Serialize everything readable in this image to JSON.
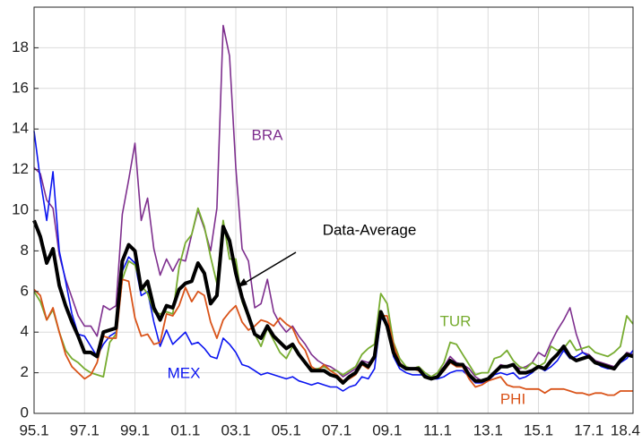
{
  "chart_data": {
    "type": "line",
    "categories": [
      "95.1",
      null,
      null,
      null,
      null,
      null,
      null,
      null,
      "97.1",
      null,
      null,
      null,
      null,
      null,
      null,
      null,
      "99.1",
      null,
      null,
      null,
      null,
      null,
      null,
      null,
      "01.1",
      null,
      null,
      null,
      null,
      null,
      null,
      null,
      "03.1",
      null,
      null,
      null,
      null,
      null,
      null,
      null,
      "05.1",
      null,
      null,
      null,
      null,
      null,
      null,
      null,
      "07.1",
      null,
      null,
      null,
      null,
      null,
      null,
      null,
      "09.1",
      null,
      null,
      null,
      null,
      null,
      null,
      null,
      "11.1",
      null,
      null,
      null,
      null,
      null,
      null,
      null,
      "13.1",
      null,
      null,
      null,
      null,
      null,
      null,
      null,
      "15.1",
      null,
      null,
      null,
      null,
      null,
      null,
      null,
      "17.1",
      null,
      null,
      null,
      null,
      null,
      null,
      "18.4"
    ],
    "series": [
      {
        "name": "BRA",
        "color": "#7e2f8e",
        "width": 1.6,
        "values": [
          12.1,
          11.8,
          10.5,
          10.1,
          7.8,
          6.6,
          5.7,
          4.8,
          4.3,
          4.3,
          3.8,
          5.3,
          5.1,
          5.3,
          9.8,
          11.5,
          13.3,
          9.5,
          10.6,
          8.1,
          6.8,
          7.6,
          7.0,
          7.6,
          7.5,
          8.8,
          10.0,
          9.1,
          8.0,
          10.1,
          19.1,
          17.6,
          12.1,
          8.1,
          7.5,
          5.2,
          5.4,
          6.6,
          5.0,
          4.4,
          4.0,
          4.3,
          3.8,
          3.4,
          2.9,
          2.6,
          2.4,
          2.3,
          2.1,
          1.8,
          2.0,
          2.2,
          2.6,
          2.5,
          2.7,
          4.9,
          4.4,
          3.1,
          2.4,
          2.2,
          2.2,
          2.3,
          2.0,
          1.8,
          2.0,
          2.3,
          2.8,
          2.5,
          2.4,
          2.2,
          1.8,
          1.6,
          1.7,
          2.0,
          2.4,
          2.3,
          2.4,
          2.2,
          2.3,
          2.5,
          3.0,
          2.8,
          3.5,
          4.1,
          4.6,
          5.2,
          3.9,
          3.0,
          2.9,
          2.6,
          2.5,
          2.4,
          2.3,
          2.6,
          3.0,
          2.9
        ]
      },
      {
        "name": "MEX",
        "color": "#0a14f0",
        "width": 1.6,
        "values": [
          13.9,
          11.5,
          9.5,
          11.9,
          8.0,
          6.5,
          4.9,
          3.9,
          3.8,
          3.3,
          2.8,
          3.4,
          3.8,
          4.0,
          7.0,
          7.7,
          7.4,
          5.8,
          6.0,
          4.5,
          3.3,
          4.1,
          3.4,
          3.7,
          4.0,
          3.4,
          3.5,
          3.2,
          2.8,
          2.7,
          3.7,
          3.4,
          3.0,
          2.4,
          2.3,
          2.1,
          1.9,
          2.0,
          1.9,
          1.8,
          1.7,
          1.8,
          1.6,
          1.5,
          1.4,
          1.5,
          1.4,
          1.3,
          1.3,
          1.1,
          1.3,
          1.4,
          1.8,
          1.7,
          2.2,
          4.7,
          4.4,
          2.8,
          2.2,
          2.0,
          1.9,
          1.9,
          1.9,
          1.7,
          1.7,
          1.8,
          2.0,
          2.1,
          2.1,
          1.8,
          1.5,
          1.5,
          1.6,
          1.9,
          2.0,
          1.9,
          2.0,
          1.7,
          1.8,
          2.0,
          2.3,
          2.1,
          2.3,
          2.6,
          3.1,
          2.7,
          2.8,
          3.0,
          2.8,
          2.5,
          2.3,
          2.2,
          2.2,
          2.5,
          2.7,
          3.1
        ]
      },
      {
        "name": "TUR",
        "color": "#77ac30",
        "width": 1.8,
        "values": [
          6.0,
          5.5,
          4.6,
          5.1,
          4.0,
          3.1,
          2.7,
          2.5,
          2.2,
          2.0,
          1.9,
          1.8,
          3.5,
          3.9,
          6.6,
          7.5,
          7.3,
          6.3,
          5.9,
          5.0,
          4.9,
          5.0,
          4.9,
          7.2,
          8.4,
          8.8,
          10.1,
          9.2,
          7.7,
          6.4,
          9.5,
          7.6,
          7.6,
          5.5,
          4.7,
          3.9,
          3.3,
          4.2,
          3.6,
          3.0,
          2.7,
          3.3,
          2.9,
          2.5,
          2.2,
          2.2,
          2.3,
          2.1,
          2.1,
          1.9,
          2.1,
          2.3,
          2.9,
          3.2,
          3.4,
          5.9,
          5.4,
          3.5,
          2.7,
          2.3,
          2.2,
          2.3,
          2.0,
          1.8,
          2.0,
          2.5,
          3.5,
          3.4,
          2.9,
          2.4,
          1.9,
          2.0,
          2.0,
          2.7,
          2.8,
          3.1,
          2.6,
          2.3,
          2.2,
          2.5,
          2.3,
          2.5,
          3.3,
          3.1,
          3.2,
          3.6,
          3.1,
          3.2,
          3.3,
          3.0,
          2.9,
          2.8,
          3.0,
          3.3,
          4.8,
          4.4
        ]
      },
      {
        "name": "PHI",
        "color": "#d95319",
        "width": 1.8,
        "values": [
          6.1,
          5.8,
          4.6,
          5.2,
          4.0,
          2.9,
          2.3,
          2.0,
          1.7,
          1.9,
          2.5,
          3.8,
          3.7,
          3.7,
          6.6,
          6.5,
          4.7,
          3.8,
          3.9,
          3.4,
          3.5,
          4.9,
          4.8,
          5.3,
          6.2,
          5.5,
          6.0,
          5.8,
          4.5,
          3.7,
          4.6,
          5.0,
          5.3,
          4.5,
          4.1,
          4.3,
          4.6,
          4.5,
          4.3,
          4.7,
          4.4,
          4.2,
          3.5,
          3.1,
          2.3,
          2.1,
          2.4,
          2.1,
          1.9,
          1.6,
          1.7,
          1.9,
          2.4,
          2.2,
          2.7,
          4.8,
          4.8,
          3.4,
          2.5,
          2.2,
          2.2,
          2.1,
          1.8,
          1.7,
          1.8,
          2.1,
          2.5,
          2.3,
          2.3,
          1.7,
          1.3,
          1.4,
          1.6,
          1.7,
          1.8,
          1.4,
          1.3,
          1.3,
          1.2,
          1.2,
          1.2,
          1.0,
          1.2,
          1.2,
          1.2,
          1.1,
          1.0,
          1.0,
          0.9,
          1.0,
          1.0,
          0.9,
          0.9,
          1.1,
          1.1,
          1.1
        ]
      },
      {
        "name": "Data-Average",
        "color": "#000000",
        "width": 4,
        "values": [
          9.5,
          8.7,
          7.4,
          8.1,
          6.3,
          5.3,
          4.5,
          3.8,
          3.0,
          3.0,
          2.8,
          4.0,
          4.1,
          4.2,
          7.5,
          8.3,
          8.0,
          6.1,
          6.5,
          5.2,
          4.6,
          5.3,
          5.2,
          6.1,
          6.4,
          6.5,
          7.4,
          6.9,
          5.4,
          5.8,
          9.2,
          8.5,
          6.9,
          5.7,
          4.8,
          3.9,
          3.7,
          4.3,
          3.8,
          3.5,
          3.2,
          3.4,
          2.9,
          2.5,
          2.1,
          2.1,
          2.1,
          1.9,
          1.8,
          1.5,
          1.8,
          2.0,
          2.5,
          2.3,
          2.8,
          5.0,
          4.3,
          3.0,
          2.4,
          2.2,
          2.2,
          2.2,
          1.8,
          1.7,
          1.8,
          2.2,
          2.6,
          2.4,
          2.4,
          1.9,
          1.6,
          1.6,
          1.7,
          2.0,
          2.3,
          2.3,
          2.4,
          2.0,
          2.0,
          2.1,
          2.3,
          2.2,
          2.6,
          2.9,
          3.3,
          2.8,
          2.6,
          2.7,
          2.8,
          2.5,
          2.4,
          2.3,
          2.2,
          2.6,
          2.9,
          2.8
        ]
      }
    ],
    "ylim": [
      0,
      20
    ],
    "yticks": [
      0,
      2,
      4,
      6,
      8,
      10,
      12,
      14,
      16,
      18
    ],
    "grid": true
  }
}
